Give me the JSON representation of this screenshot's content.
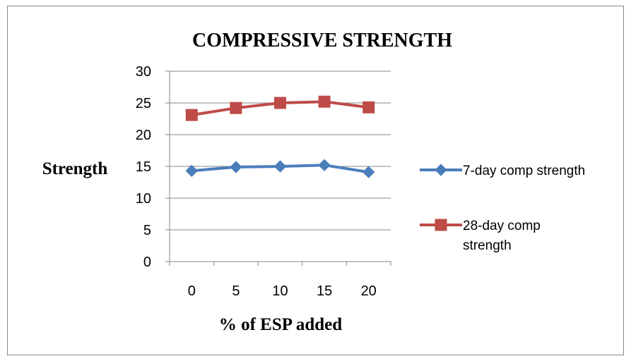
{
  "chart_data": {
    "type": "line",
    "title": "COMPRESSIVE STRENGTH",
    "xlabel": "% of ESP added",
    "ylabel": "Strength",
    "categories": [
      "0",
      "5",
      "10",
      "15",
      "20"
    ],
    "ylim": [
      0,
      30
    ],
    "yticks": [
      "0",
      "5",
      "10",
      "15",
      "20",
      "25",
      "30"
    ],
    "grid": "horizontal",
    "legend_position": "right",
    "series": [
      {
        "name": "7-day comp strength",
        "legend_lines": [
          "7-day comp strength"
        ],
        "values": [
          14.3,
          14.9,
          15.0,
          15.2,
          14.1
        ],
        "color": "#4a7ebb",
        "marker": "diamond"
      },
      {
        "name": "28-day comp strength",
        "legend_lines": [
          "28-day comp",
          "strength"
        ],
        "values": [
          23.1,
          24.2,
          25.0,
          25.2,
          24.3
        ],
        "color": "#be4b48",
        "marker": "square"
      }
    ]
  }
}
